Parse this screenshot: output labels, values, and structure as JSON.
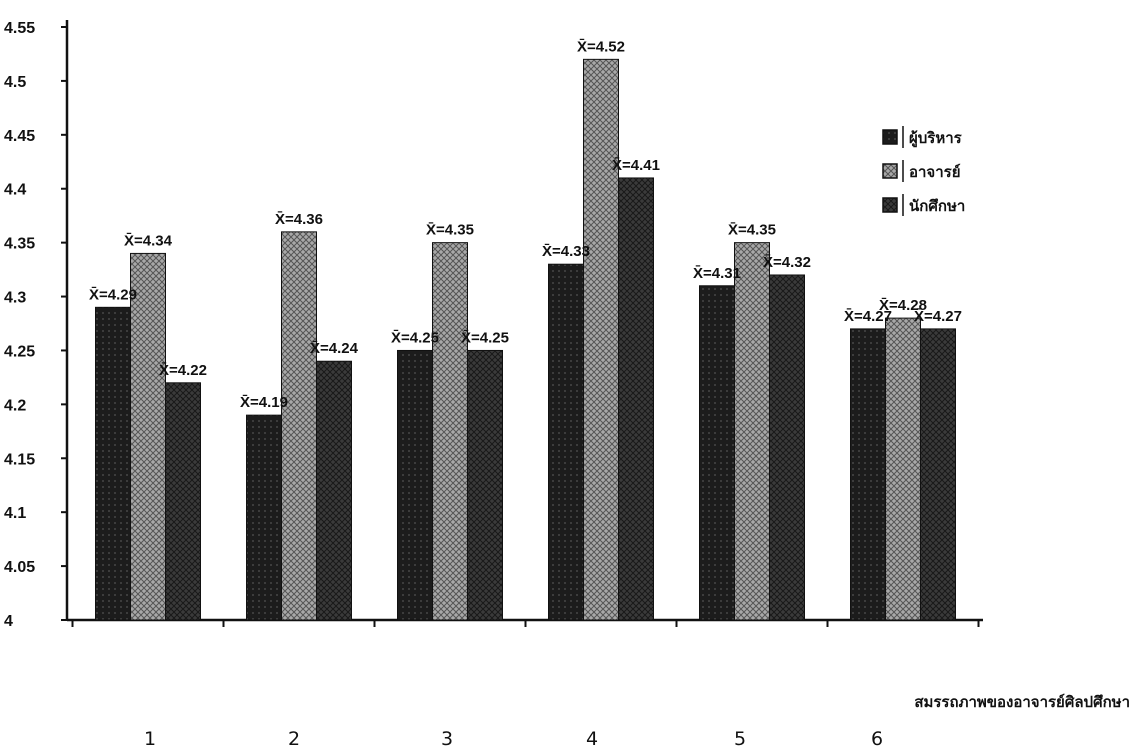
{
  "chart_data": {
    "type": "bar",
    "categories": [
      "1",
      "2",
      "3",
      "4",
      "5",
      "6"
    ],
    "series": [
      {
        "name": "ผู้บริหาร",
        "values": [
          4.29,
          4.19,
          4.25,
          4.33,
          4.31,
          4.27
        ],
        "labels": [
          "X̄=4.29",
          "X̄=4.19",
          "X̄=4.25",
          "X̄=4.33",
          "X̄=4.31",
          "X̄=4.27"
        ],
        "color": "#1a1a1a"
      },
      {
        "name": "อาจารย์",
        "values": [
          4.34,
          4.36,
          4.35,
          4.52,
          4.35,
          4.28
        ],
        "labels": [
          "X̄=4.34",
          "X̄=4.36",
          "X̄=4.35",
          "X̄=4.52",
          "X̄=4.35",
          "X̄=4.28"
        ],
        "color": "#9a9a9a"
      },
      {
        "name": "นักศึกษา",
        "values": [
          4.22,
          4.24,
          4.25,
          4.41,
          4.32,
          4.27
        ],
        "labels": [
          "X̄=4.22",
          "X̄=4.24",
          "X̄=4.25",
          "X̄=4.41",
          "X̄=4.32",
          "X̄=4.27"
        ],
        "color": "#3a3a3a"
      }
    ],
    "yticks": [
      "4",
      "4.05",
      "4.1",
      "4.15",
      "4.2",
      "4.25",
      "4.3",
      "4.35",
      "4.4",
      "4.45",
      "4.5",
      "4.55"
    ],
    "ylim": [
      4,
      4.55
    ],
    "xlabel": "สมรรถภาพของอาจารย์ศิลปศึกษา",
    "ylabel": "",
    "title": "",
    "grid": false,
    "legend_position": "top-right"
  }
}
